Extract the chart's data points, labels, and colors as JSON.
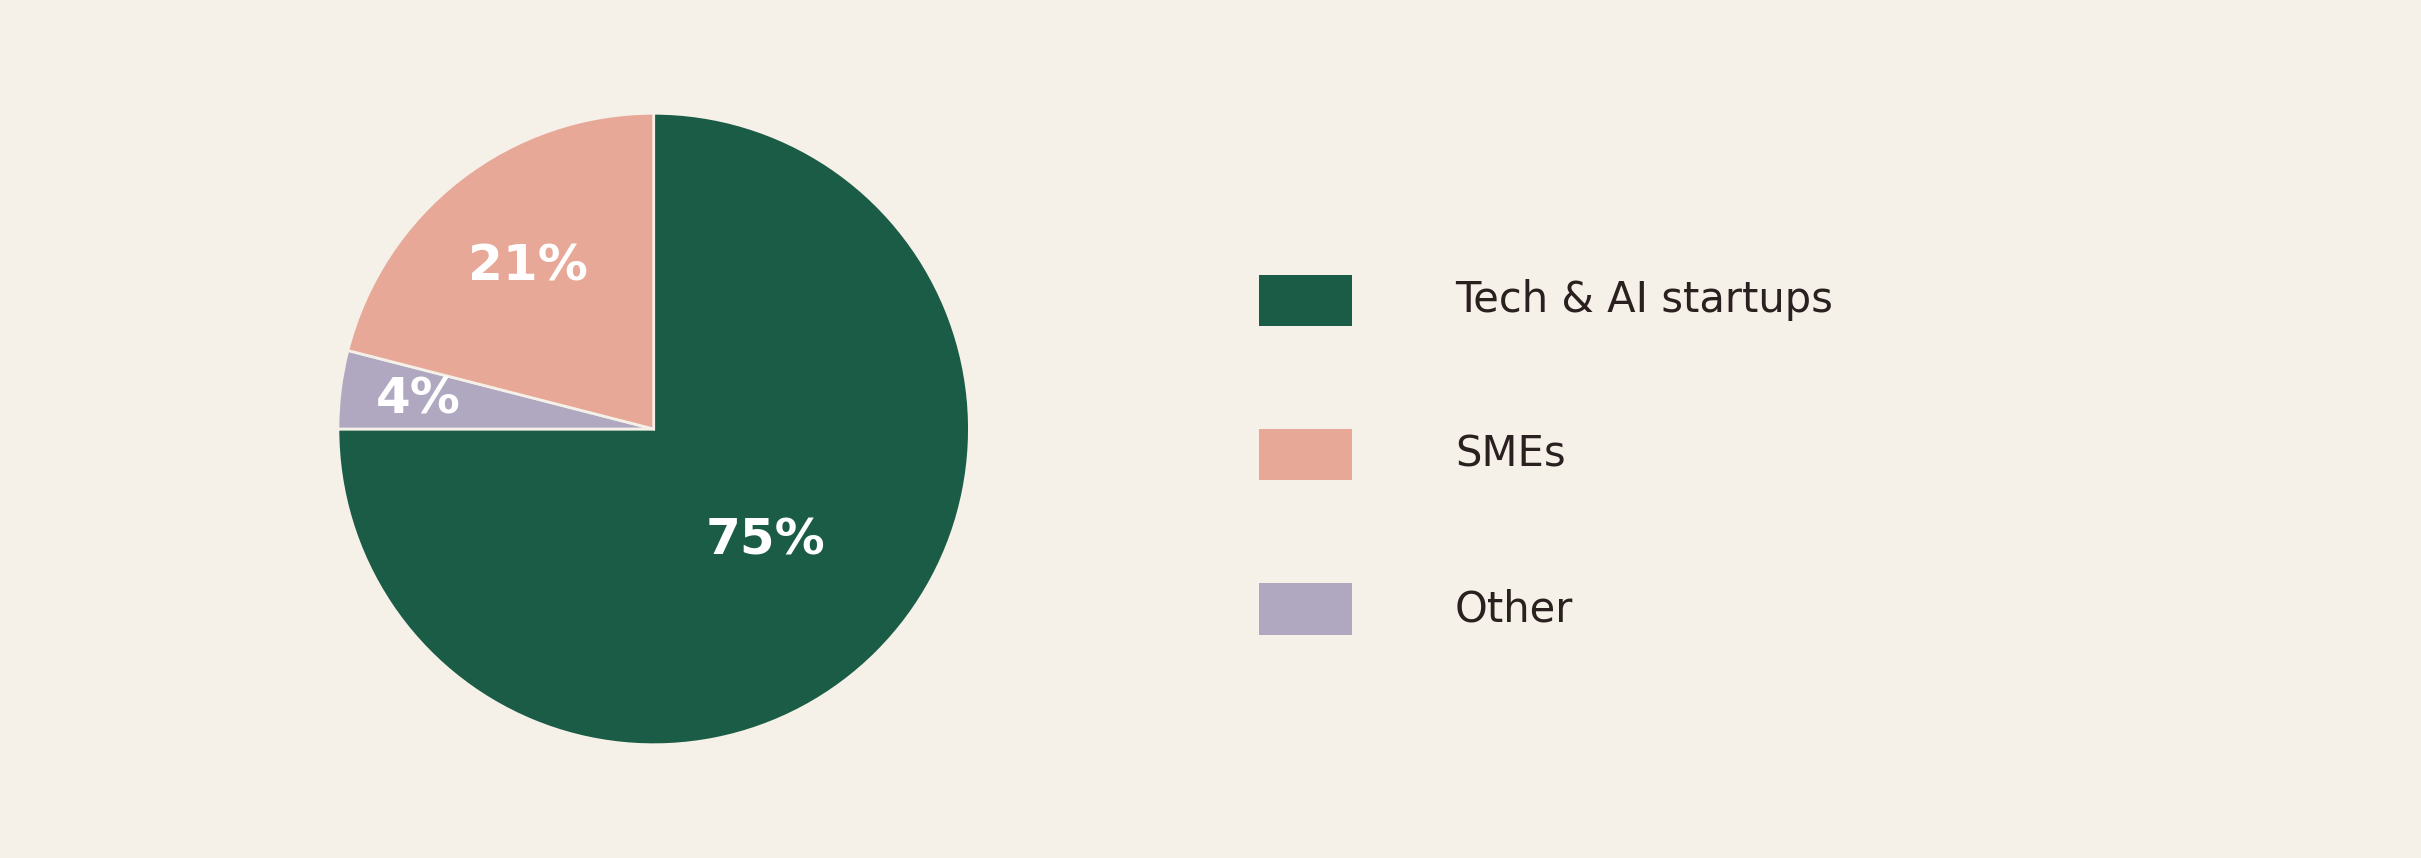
{
  "values": [
    75,
    4,
    21
  ],
  "labels": [
    "75%",
    "4%",
    "21%"
  ],
  "label_colors": [
    "white",
    "white",
    "white"
  ],
  "legend_labels": [
    "Tech & AI startups",
    "SMEs",
    "Other"
  ],
  "legend_colors": [
    "#1a5c45",
    "#e8a898",
    "#b0a8c0"
  ],
  "slice_colors": [
    "#1a5c45",
    "#b0a8c0",
    "#e8a898"
  ],
  "background_color": "#f5f0e8",
  "text_color": "#2b2020",
  "label_font_size": 36,
  "legend_font_size": 30,
  "startangle": 90
}
